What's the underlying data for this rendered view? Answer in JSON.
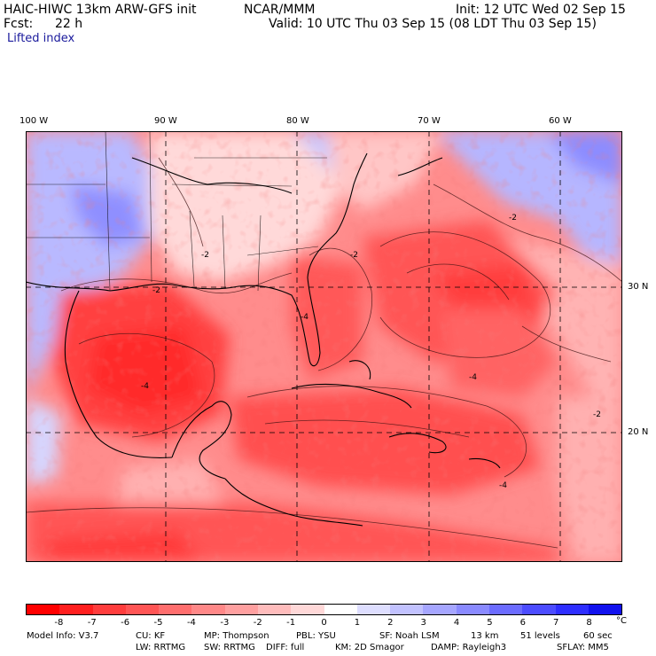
{
  "header": {
    "model_title": "HAIC-HIWC 13km ARW-GFS init",
    "org": "NCAR/MMM",
    "init": "Init: 12 UTC Wed 02 Sep 15",
    "fcst_label": "Fcst:",
    "fcst_value": "22 h",
    "valid": "Valid: 10 UTC Thu 03 Sep 15 (08 LDT Thu 03 Sep 15)",
    "field": "Lifted index"
  },
  "map": {
    "lon_labels": [
      "100 W",
      "90 W",
      "80 W",
      "70 W",
      "60 W"
    ],
    "lat_labels": [
      "30 N",
      "20 N"
    ],
    "contour_labels": [
      "-2",
      "-2",
      "-2",
      "-2",
      "-4",
      "-4",
      "-2",
      "-4",
      "-4"
    ]
  },
  "colorbar": {
    "colors": [
      "#ff0000",
      "#ff1f1f",
      "#ff3d3d",
      "#ff5555",
      "#ff6e6e",
      "#ff8888",
      "#ffa0a0",
      "#ffbcbc",
      "#ffd8d8",
      "#ffffff",
      "#dedeff",
      "#c2c2ff",
      "#a6a6ff",
      "#8a8aff",
      "#6c6cff",
      "#4c4cff",
      "#2e2eff",
      "#1212ee"
    ],
    "ticks": [
      "-8",
      "-7",
      "-6",
      "-5",
      "-4",
      "-3",
      "-2",
      "-1",
      "0",
      "1",
      "2",
      "3",
      "4",
      "5",
      "6",
      "7",
      "8"
    ],
    "unit": "°C"
  },
  "model_info": {
    "line1": [
      "Model Info: V3.7",
      "CU: KF",
      "MP: Thompson",
      "PBL: YSU",
      "SF: Noah LSM",
      "13 km",
      "51 levels",
      "60 sec"
    ],
    "line2": [
      "LW: RRTMG",
      "SW: RRTMG",
      "DIFF: full",
      "KM: 2D Smagor",
      "DAMP: Rayleigh3",
      "SFLAY: MM5"
    ]
  }
}
